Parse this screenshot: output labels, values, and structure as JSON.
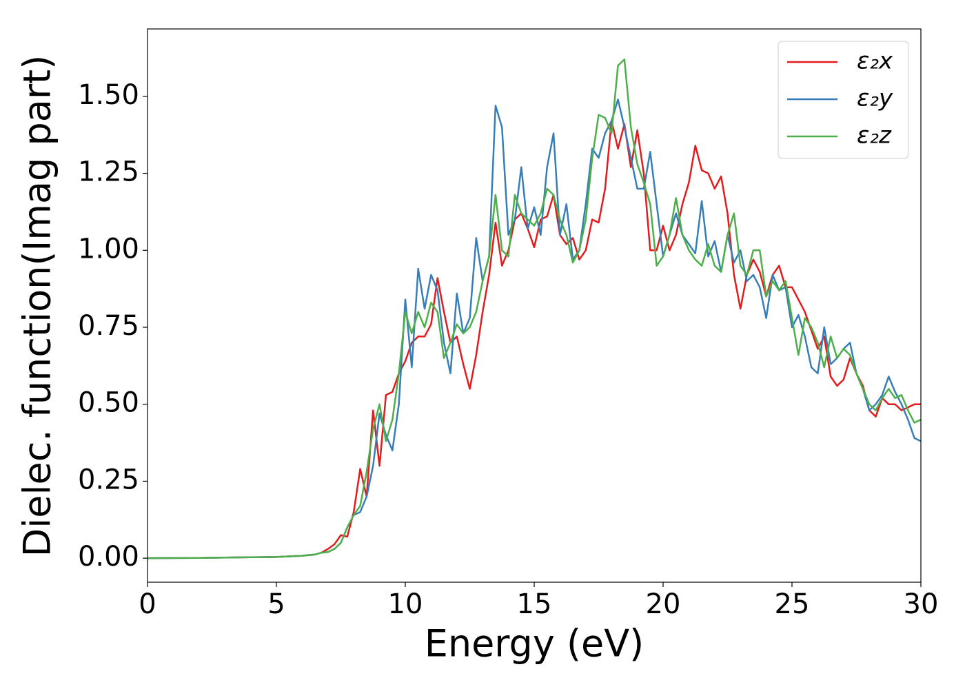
{
  "chart_data": {
    "type": "line",
    "xlabel": "Energy (eV)",
    "ylabel": "Dielec. function(Imag part)",
    "x": [
      0,
      2,
      4,
      5,
      6,
      6.5,
      6.75,
      7,
      7.25,
      7.5,
      7.75,
      8,
      8.25,
      8.5,
      8.75,
      9,
      9.25,
      9.5,
      9.75,
      10,
      10.25,
      10.5,
      10.75,
      11,
      11.25,
      11.5,
      11.75,
      12,
      12.25,
      12.5,
      12.75,
      13,
      13.25,
      13.5,
      13.75,
      14,
      14.25,
      14.5,
      14.75,
      15,
      15.25,
      15.5,
      15.75,
      16,
      16.25,
      16.5,
      16.75,
      17,
      17.25,
      17.5,
      17.75,
      18,
      18.25,
      18.5,
      18.75,
      19,
      19.25,
      19.5,
      19.75,
      20,
      20.25,
      20.5,
      20.75,
      21,
      21.25,
      21.5,
      21.75,
      22,
      22.25,
      22.5,
      22.75,
      23,
      23.25,
      23.5,
      23.75,
      24,
      24.25,
      24.5,
      24.75,
      25,
      25.25,
      25.5,
      25.75,
      26,
      26.25,
      26.5,
      26.75,
      27,
      27.25,
      27.5,
      27.75,
      28,
      28.25,
      28.5,
      28.75,
      29,
      29.25,
      29.5,
      29.75,
      30
    ],
    "series": [
      {
        "name": "ε₂x",
        "color": "#e41a1c",
        "values": [
          0,
          0.001,
          0.003,
          0.004,
          0.008,
          0.012,
          0.018,
          0.03,
          0.045,
          0.075,
          0.07,
          0.15,
          0.29,
          0.2,
          0.48,
          0.3,
          0.53,
          0.54,
          0.6,
          0.64,
          0.7,
          0.72,
          0.72,
          0.76,
          0.91,
          0.8,
          0.7,
          0.72,
          0.63,
          0.55,
          0.66,
          0.8,
          0.92,
          1.09,
          0.95,
          1.0,
          1.1,
          1.12,
          1.07,
          1.01,
          1.1,
          1.11,
          1.18,
          1.05,
          1.02,
          1.04,
          0.97,
          1.0,
          1.1,
          1.09,
          1.2,
          1.42,
          1.33,
          1.41,
          1.27,
          1.39,
          1.25,
          1.0,
          1.0,
          1.08,
          1.0,
          1.05,
          1.15,
          1.22,
          1.34,
          1.26,
          1.25,
          1.2,
          1.24,
          1.12,
          0.92,
          0.81,
          0.92,
          0.97,
          0.93,
          0.85,
          0.92,
          0.95,
          0.88,
          0.88,
          0.84,
          0.8,
          0.74,
          0.68,
          0.72,
          0.59,
          0.56,
          0.58,
          0.65,
          0.6,
          0.56,
          0.48,
          0.46,
          0.52,
          0.5,
          0.5,
          0.48,
          0.49,
          0.5,
          0.5
        ]
      },
      {
        "name": "ε₂y",
        "color": "#377eb8",
        "values": [
          0,
          0.001,
          0.003,
          0.004,
          0.008,
          0.012,
          0.018,
          0.02,
          0.03,
          0.05,
          0.1,
          0.14,
          0.15,
          0.2,
          0.3,
          0.47,
          0.4,
          0.35,
          0.5,
          0.84,
          0.62,
          0.94,
          0.81,
          0.92,
          0.87,
          0.7,
          0.6,
          0.86,
          0.73,
          0.78,
          1.04,
          0.9,
          0.98,
          1.47,
          1.4,
          1.05,
          1.1,
          1.27,
          1.07,
          1.14,
          1.05,
          1.27,
          1.38,
          1.05,
          1.15,
          0.97,
          1.0,
          1.15,
          1.33,
          1.3,
          1.38,
          1.42,
          1.49,
          1.4,
          1.3,
          1.2,
          1.2,
          1.32,
          1.15,
          0.98,
          1.05,
          1.12,
          1.05,
          1.02,
          0.99,
          1.16,
          0.98,
          1.03,
          0.93,
          1.05,
          0.96,
          1.0,
          0.9,
          0.92,
          0.88,
          0.78,
          0.92,
          0.87,
          0.88,
          0.75,
          0.79,
          0.72,
          0.62,
          0.6,
          0.75,
          0.63,
          0.65,
          0.68,
          0.7,
          0.6,
          0.55,
          0.48,
          0.5,
          0.53,
          0.59,
          0.54,
          0.5,
          0.45,
          0.39,
          0.38
        ]
      },
      {
        "name": "ε₂z",
        "color": "#4daf4a",
        "values": [
          0,
          0.001,
          0.003,
          0.004,
          0.008,
          0.012,
          0.018,
          0.02,
          0.03,
          0.05,
          0.1,
          0.14,
          0.17,
          0.28,
          0.42,
          0.5,
          0.38,
          0.45,
          0.6,
          0.8,
          0.73,
          0.8,
          0.75,
          0.83,
          0.8,
          0.65,
          0.7,
          0.76,
          0.73,
          0.75,
          0.8,
          0.9,
          0.98,
          1.18,
          1.0,
          0.98,
          1.18,
          1.12,
          1.1,
          1.08,
          1.12,
          1.2,
          1.18,
          1.1,
          1.05,
          0.96,
          1.0,
          1.1,
          1.3,
          1.44,
          1.43,
          1.38,
          1.6,
          1.62,
          1.4,
          1.28,
          1.22,
          1.15,
          0.95,
          0.98,
          1.05,
          1.17,
          1.05,
          1.0,
          0.97,
          0.95,
          1.02,
          0.95,
          0.93,
          1.05,
          1.12,
          0.95,
          0.92,
          1.0,
          1.0,
          0.85,
          0.9,
          0.87,
          0.9,
          0.78,
          0.66,
          0.78,
          0.75,
          0.7,
          0.62,
          0.72,
          0.65,
          0.68,
          0.66,
          0.6,
          0.55,
          0.5,
          0.48,
          0.52,
          0.55,
          0.52,
          0.53,
          0.48,
          0.44,
          0.45
        ]
      }
    ],
    "xlim": [
      0,
      30
    ],
    "ylim": [
      -0.078,
      1.719
    ],
    "xticks": [
      0,
      5,
      10,
      15,
      20,
      25,
      30
    ],
    "yticks": [
      {
        "value": 0,
        "label": "0.00"
      },
      {
        "value": 0.25,
        "label": "0.25"
      },
      {
        "value": 0.5,
        "label": "0.50"
      },
      {
        "value": 0.75,
        "label": "0.75"
      },
      {
        "value": 1.0,
        "label": "1.00"
      },
      {
        "value": 1.25,
        "label": "1.25"
      },
      {
        "value": 1.5,
        "label": "1.50"
      }
    ],
    "legend": "upper right",
    "grid": false
  }
}
